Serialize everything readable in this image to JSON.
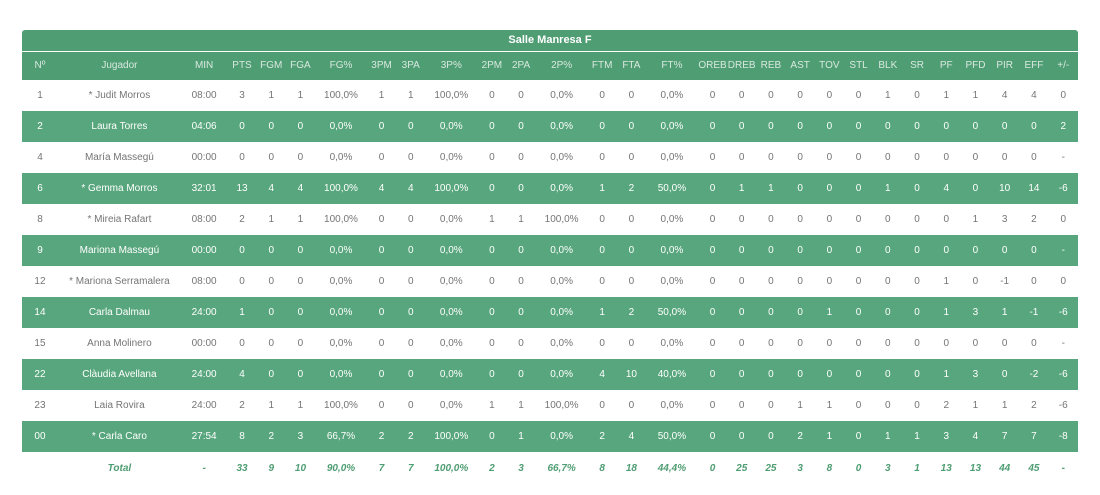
{
  "table": {
    "title": "Salle Manresa F",
    "columns": [
      "Nº",
      "Jugador",
      "MIN",
      "PTS",
      "FGM",
      "FGA",
      "FG%",
      "3PM",
      "3PA",
      "3P%",
      "2PM",
      "2PA",
      "2P%",
      "FTM",
      "FTA",
      "FT%",
      "OREB",
      "DREB",
      "REB",
      "AST",
      "TOV",
      "STL",
      "BLK",
      "SR",
      "PF",
      "PFD",
      "PIR",
      "EFF",
      "+/-"
    ],
    "rows": [
      [
        "1",
        "* Judit Morros",
        "08:00",
        "3",
        "1",
        "1",
        "100,0%",
        "1",
        "1",
        "100,0%",
        "0",
        "0",
        "0,0%",
        "0",
        "0",
        "0,0%",
        "0",
        "0",
        "0",
        "0",
        "0",
        "0",
        "1",
        "0",
        "1",
        "1",
        "4",
        "4",
        "0"
      ],
      [
        "2",
        "Laura Torres",
        "04:06",
        "0",
        "0",
        "0",
        "0,0%",
        "0",
        "0",
        "0,0%",
        "0",
        "0",
        "0,0%",
        "0",
        "0",
        "0,0%",
        "0",
        "0",
        "0",
        "0",
        "0",
        "0",
        "0",
        "0",
        "0",
        "0",
        "0",
        "0",
        "2"
      ],
      [
        "4",
        "María Massegú",
        "00:00",
        "0",
        "0",
        "0",
        "0,0%",
        "0",
        "0",
        "0,0%",
        "0",
        "0",
        "0,0%",
        "0",
        "0",
        "0,0%",
        "0",
        "0",
        "0",
        "0",
        "0",
        "0",
        "0",
        "0",
        "0",
        "0",
        "0",
        "0",
        "-"
      ],
      [
        "6",
        "* Gemma Morros",
        "32:01",
        "13",
        "4",
        "4",
        "100,0%",
        "4",
        "4",
        "100,0%",
        "0",
        "0",
        "0,0%",
        "1",
        "2",
        "50,0%",
        "0",
        "1",
        "1",
        "0",
        "0",
        "0",
        "1",
        "0",
        "4",
        "0",
        "10",
        "14",
        "-6"
      ],
      [
        "8",
        "* Mireia Rafart",
        "08:00",
        "2",
        "1",
        "1",
        "100,0%",
        "0",
        "0",
        "0,0%",
        "1",
        "1",
        "100,0%",
        "0",
        "0",
        "0,0%",
        "0",
        "0",
        "0",
        "0",
        "0",
        "0",
        "0",
        "0",
        "0",
        "1",
        "3",
        "2",
        "0"
      ],
      [
        "9",
        "Mariona Massegú",
        "00:00",
        "0",
        "0",
        "0",
        "0,0%",
        "0",
        "0",
        "0,0%",
        "0",
        "0",
        "0,0%",
        "0",
        "0",
        "0,0%",
        "0",
        "0",
        "0",
        "0",
        "0",
        "0",
        "0",
        "0",
        "0",
        "0",
        "0",
        "0",
        "-"
      ],
      [
        "12",
        "* Mariona Serramalera",
        "08:00",
        "0",
        "0",
        "0",
        "0,0%",
        "0",
        "0",
        "0,0%",
        "0",
        "0",
        "0,0%",
        "0",
        "0",
        "0,0%",
        "0",
        "0",
        "0",
        "0",
        "0",
        "0",
        "0",
        "0",
        "1",
        "0",
        "-1",
        "0",
        "0"
      ],
      [
        "14",
        "Carla Dalmau",
        "24:00",
        "1",
        "0",
        "0",
        "0,0%",
        "0",
        "0",
        "0,0%",
        "0",
        "0",
        "0,0%",
        "1",
        "2",
        "50,0%",
        "0",
        "0",
        "0",
        "0",
        "1",
        "0",
        "0",
        "0",
        "1",
        "3",
        "1",
        "-1",
        "-6"
      ],
      [
        "15",
        "Anna Molinero",
        "00:00",
        "0",
        "0",
        "0",
        "0,0%",
        "0",
        "0",
        "0,0%",
        "0",
        "0",
        "0,0%",
        "0",
        "0",
        "0,0%",
        "0",
        "0",
        "0",
        "0",
        "0",
        "0",
        "0",
        "0",
        "0",
        "0",
        "0",
        "0",
        "-"
      ],
      [
        "22",
        "Clàudia Avellana",
        "24:00",
        "4",
        "0",
        "0",
        "0,0%",
        "0",
        "0",
        "0,0%",
        "0",
        "0",
        "0,0%",
        "4",
        "10",
        "40,0%",
        "0",
        "0",
        "0",
        "0",
        "0",
        "0",
        "0",
        "0",
        "1",
        "3",
        "0",
        "-2",
        "-6"
      ],
      [
        "23",
        "Laia Rovira",
        "24:00",
        "2",
        "1",
        "1",
        "100,0%",
        "0",
        "0",
        "0,0%",
        "1",
        "1",
        "100,0%",
        "0",
        "0",
        "0,0%",
        "0",
        "0",
        "0",
        "1",
        "1",
        "0",
        "0",
        "0",
        "2",
        "1",
        "1",
        "2",
        "-6"
      ],
      [
        "00",
        "* Carla Caro",
        "27:54",
        "8",
        "2",
        "3",
        "66,7%",
        "2",
        "2",
        "100,0%",
        "0",
        "1",
        "0,0%",
        "2",
        "4",
        "50,0%",
        "0",
        "0",
        "0",
        "2",
        "1",
        "0",
        "1",
        "1",
        "3",
        "4",
        "7",
        "7",
        "-8"
      ]
    ],
    "total": [
      "",
      "Total",
      "-",
      "33",
      "9",
      "10",
      "90,0%",
      "7",
      "7",
      "100,0%",
      "2",
      "3",
      "66,7%",
      "8",
      "18",
      "44,4%",
      "0",
      "25",
      "25",
      "3",
      "8",
      "0",
      "3",
      "1",
      "13",
      "13",
      "44",
      "45",
      "-"
    ]
  },
  "colors": {
    "header_green": "#4f9d73",
    "row_green": "#58a67d",
    "total_text_green": "#418f66",
    "row_text_gray": "#757575",
    "white": "#ffffff"
  }
}
